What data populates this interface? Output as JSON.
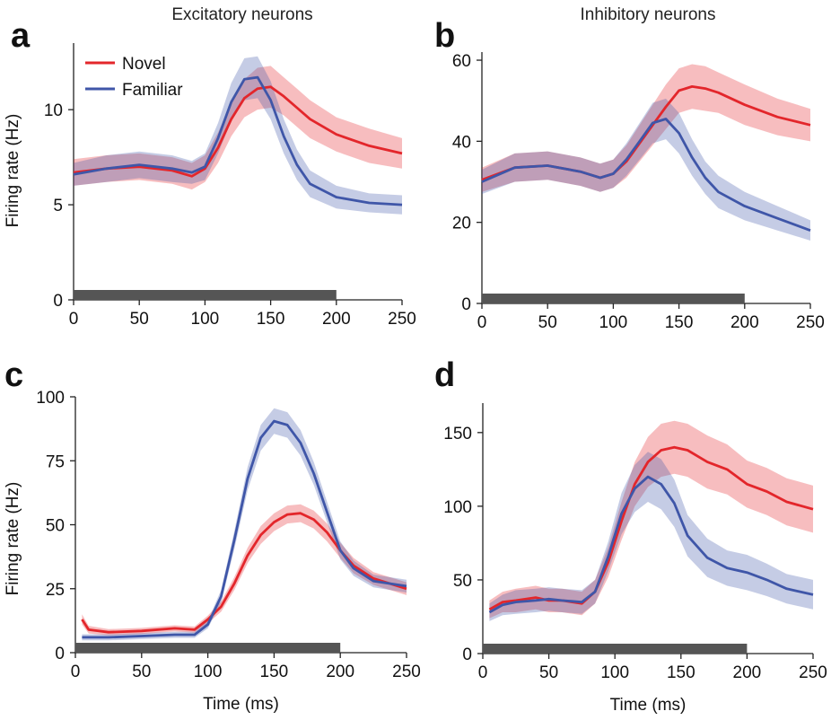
{
  "figure": {
    "column_titles": [
      "Excitatory neurons",
      "Inhibitory neurons"
    ]
  },
  "legend": [
    {
      "name": "Novel",
      "color": "#e3262b"
    },
    {
      "name": "Familiar",
      "color": "#3f56a8"
    }
  ],
  "chart_data": [
    {
      "panel": "a",
      "type": "line",
      "title": "",
      "xlabel": "",
      "ylabel": "Firing rate (Hz)",
      "xlim": [
        0,
        250
      ],
      "ylim": [
        0,
        13.5
      ],
      "xticks": [
        0,
        50,
        100,
        150,
        200,
        250
      ],
      "yticks": [
        0,
        5,
        10
      ],
      "stimulus_bar": [
        0,
        200
      ],
      "x": [
        0,
        25,
        50,
        75,
        90,
        100,
        110,
        120,
        130,
        140,
        150,
        160,
        170,
        180,
        200,
        225,
        250
      ],
      "series": [
        {
          "name": "Novel",
          "color": "#e3262b",
          "values": [
            6.7,
            6.9,
            7.0,
            6.8,
            6.5,
            6.9,
            8.0,
            9.5,
            10.6,
            11.1,
            11.2,
            10.7,
            10.1,
            9.5,
            8.7,
            8.1,
            7.7
          ],
          "err": [
            0.7,
            0.7,
            0.7,
            0.7,
            0.7,
            0.7,
            0.8,
            0.9,
            1.0,
            1.1,
            1.1,
            1.0,
            1.0,
            1.0,
            0.9,
            0.9,
            0.8
          ]
        },
        {
          "name": "Familiar",
          "color": "#3f56a8",
          "values": [
            6.6,
            6.9,
            7.1,
            6.9,
            6.7,
            7.0,
            8.5,
            10.4,
            11.6,
            11.7,
            10.5,
            8.6,
            7.1,
            6.1,
            5.4,
            5.1,
            5.0
          ],
          "err": [
            0.6,
            0.7,
            0.7,
            0.7,
            0.6,
            0.7,
            0.8,
            1.0,
            1.1,
            1.1,
            1.0,
            0.9,
            0.8,
            0.7,
            0.6,
            0.5,
            0.5
          ]
        }
      ]
    },
    {
      "panel": "b",
      "type": "line",
      "title": "",
      "xlabel": "",
      "ylabel": "",
      "xlim": [
        0,
        250
      ],
      "ylim": [
        0,
        62
      ],
      "xticks": [
        0,
        50,
        100,
        150,
        200,
        250
      ],
      "yticks": [
        0,
        20,
        40,
        60
      ],
      "stimulus_bar": [
        0,
        200
      ],
      "x": [
        0,
        25,
        50,
        75,
        90,
        100,
        110,
        120,
        130,
        140,
        150,
        160,
        170,
        180,
        200,
        225,
        250
      ],
      "series": [
        {
          "name": "Novel",
          "color": "#e3262b",
          "values": [
            30.5,
            33.5,
            34.0,
            32.5,
            31.0,
            32.0,
            35.0,
            39.5,
            44.0,
            48.5,
            52.5,
            53.5,
            53.0,
            52.0,
            49.0,
            46.0,
            44.0
          ],
          "err": [
            3.0,
            3.5,
            3.5,
            3.5,
            3.5,
            3.5,
            4.0,
            4.5,
            5.0,
            5.5,
            5.5,
            5.5,
            5.5,
            5.0,
            5.0,
            4.5,
            4.0
          ]
        },
        {
          "name": "Familiar",
          "color": "#3f56a8",
          "values": [
            30.0,
            33.5,
            34.0,
            32.5,
            31.0,
            32.0,
            35.5,
            40.0,
            44.5,
            45.5,
            42.0,
            36.0,
            31.0,
            27.5,
            24.0,
            21.0,
            18.0
          ],
          "err": [
            3.0,
            3.5,
            3.5,
            3.5,
            3.5,
            3.5,
            4.0,
            4.5,
            5.0,
            5.0,
            5.0,
            4.5,
            4.0,
            4.0,
            3.5,
            3.0,
            2.5
          ]
        }
      ]
    },
    {
      "panel": "c",
      "type": "line",
      "title": "",
      "xlabel": "Time (ms)",
      "ylabel": "Firing rate (Hz)",
      "xlim": [
        0,
        250
      ],
      "ylim": [
        0,
        100
      ],
      "xticks": [
        0,
        50,
        100,
        150,
        200,
        250
      ],
      "yticks": [
        0,
        25,
        50,
        75,
        100
      ],
      "stimulus_bar": [
        0,
        200
      ],
      "x": [
        5,
        10,
        25,
        50,
        75,
        90,
        100,
        110,
        120,
        130,
        140,
        150,
        160,
        170,
        180,
        190,
        200,
        210,
        225,
        250
      ],
      "series": [
        {
          "name": "Novel",
          "color": "#e3262b",
          "values": [
            13.0,
            9.0,
            8.0,
            8.5,
            9.5,
            9.0,
            13.0,
            18.0,
            27.0,
            38.0,
            46.0,
            51.0,
            54.0,
            54.5,
            52.0,
            47.0,
            40.0,
            34.0,
            29.0,
            25.0
          ],
          "err": [
            2.0,
            1.5,
            1.2,
            1.2,
            1.2,
            1.2,
            1.5,
            2.0,
            2.5,
            3.0,
            3.5,
            3.5,
            3.5,
            3.5,
            3.5,
            3.5,
            3.0,
            3.0,
            2.5,
            2.5
          ]
        },
        {
          "name": "Familiar",
          "color": "#3f56a8",
          "values": [
            6.0,
            6.0,
            6.0,
            6.5,
            7.0,
            7.0,
            11.0,
            22.0,
            44.0,
            68.0,
            84.0,
            90.5,
            89.0,
            82.0,
            70.0,
            55.0,
            40.0,
            33.0,
            28.0,
            26.0
          ],
          "err": [
            1.2,
            1.2,
            1.2,
            1.2,
            1.2,
            1.2,
            1.5,
            2.5,
            3.5,
            4.5,
            5.0,
            5.0,
            5.0,
            5.0,
            4.5,
            4.0,
            3.5,
            3.0,
            2.5,
            2.5
          ]
        }
      ]
    },
    {
      "panel": "d",
      "type": "line",
      "title": "",
      "xlabel": "Time (ms)",
      "ylabel": "",
      "xlim": [
        0,
        250
      ],
      "ylim": [
        0,
        170
      ],
      "xticks": [
        0,
        50,
        100,
        150,
        200,
        250
      ],
      "yticks": [
        0,
        50,
        100,
        150
      ],
      "stimulus_bar": [
        0,
        200
      ],
      "x": [
        5,
        15,
        25,
        40,
        50,
        60,
        75,
        85,
        95,
        105,
        115,
        125,
        135,
        145,
        155,
        170,
        185,
        200,
        215,
        230,
        250
      ],
      "series": [
        {
          "name": "Novel",
          "color": "#e3262b",
          "values": [
            30.0,
            35.0,
            36.0,
            38.0,
            36.0,
            36.0,
            34.0,
            42.0,
            62.0,
            90.0,
            115.0,
            130.0,
            138.0,
            140.0,
            138.0,
            130.0,
            125.0,
            115.0,
            110.0,
            103.0,
            98.0
          ],
          "err": [
            6.0,
            7.0,
            8.0,
            8.0,
            8.0,
            8.0,
            8.0,
            8.0,
            10.0,
            13.0,
            15.0,
            17.0,
            18.0,
            18.0,
            18.0,
            18.0,
            17.0,
            16.0,
            16.0,
            16.0,
            16.0
          ]
        },
        {
          "name": "Familiar",
          "color": "#3f56a8",
          "values": [
            28.0,
            33.0,
            35.0,
            36.0,
            37.0,
            36.0,
            35.0,
            42.0,
            66.0,
            95.0,
            112.0,
            120.0,
            115.0,
            102.0,
            80.0,
            65.0,
            58.0,
            55.0,
            50.0,
            44.0,
            40.0
          ],
          "err": [
            6.0,
            7.0,
            8.0,
            8.0,
            8.0,
            8.0,
            8.0,
            8.0,
            10.0,
            14.0,
            16.0,
            17.0,
            17.0,
            16.0,
            14.0,
            13.0,
            12.0,
            12.0,
            11.0,
            10.0,
            10.0
          ]
        }
      ]
    }
  ]
}
